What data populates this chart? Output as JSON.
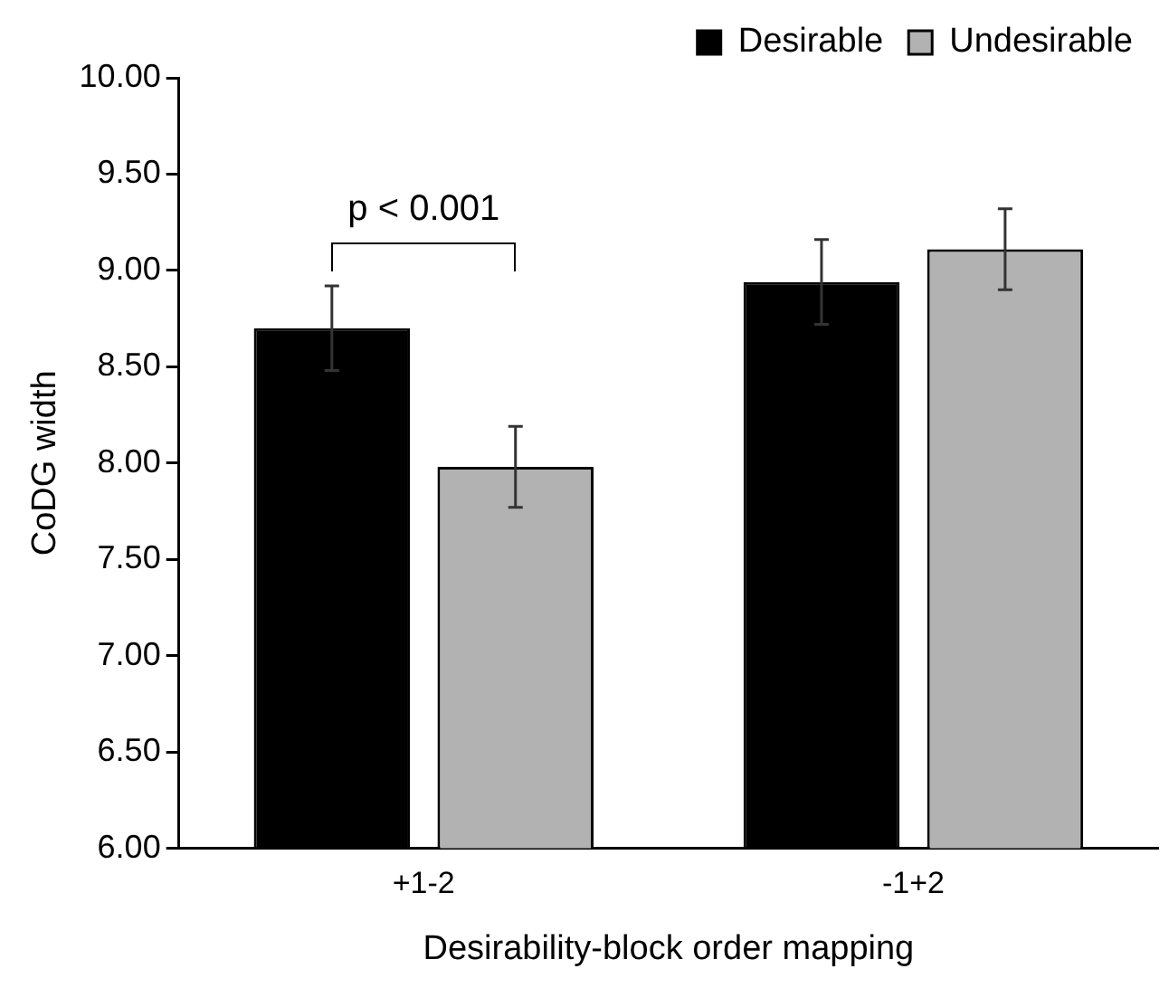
{
  "chart_data": {
    "type": "bar",
    "xlabel": "Desirability-block order mapping",
    "ylabel": "CoDG width",
    "categories": [
      "+1-2",
      "-1+2"
    ],
    "series": [
      {
        "name": "Desirable",
        "color": "#000000",
        "values": [
          8.7,
          8.94
        ],
        "errors": [
          0.22,
          0.22
        ]
      },
      {
        "name": "Undesirable",
        "color": "#b2b2b2",
        "values": [
          7.98,
          9.11
        ],
        "errors": [
          0.21,
          0.21
        ]
      }
    ],
    "ylim": [
      6,
      10
    ],
    "yticks": [
      {
        "value": 6,
        "label": "6.00"
      },
      {
        "value": 6.5,
        "label": "6.50"
      },
      {
        "value": 7,
        "label": "7.00"
      },
      {
        "value": 7.5,
        "label": "7.50"
      },
      {
        "value": 8,
        "label": "8.00"
      },
      {
        "value": 8.5,
        "label": "8.50"
      },
      {
        "value": 9,
        "label": "9.00"
      },
      {
        "value": 9.5,
        "label": "9.50"
      },
      {
        "value": 10,
        "label": "10.00"
      }
    ],
    "annotations": [
      "p < 0.001"
    ],
    "grid": false,
    "legend": "top right"
  }
}
